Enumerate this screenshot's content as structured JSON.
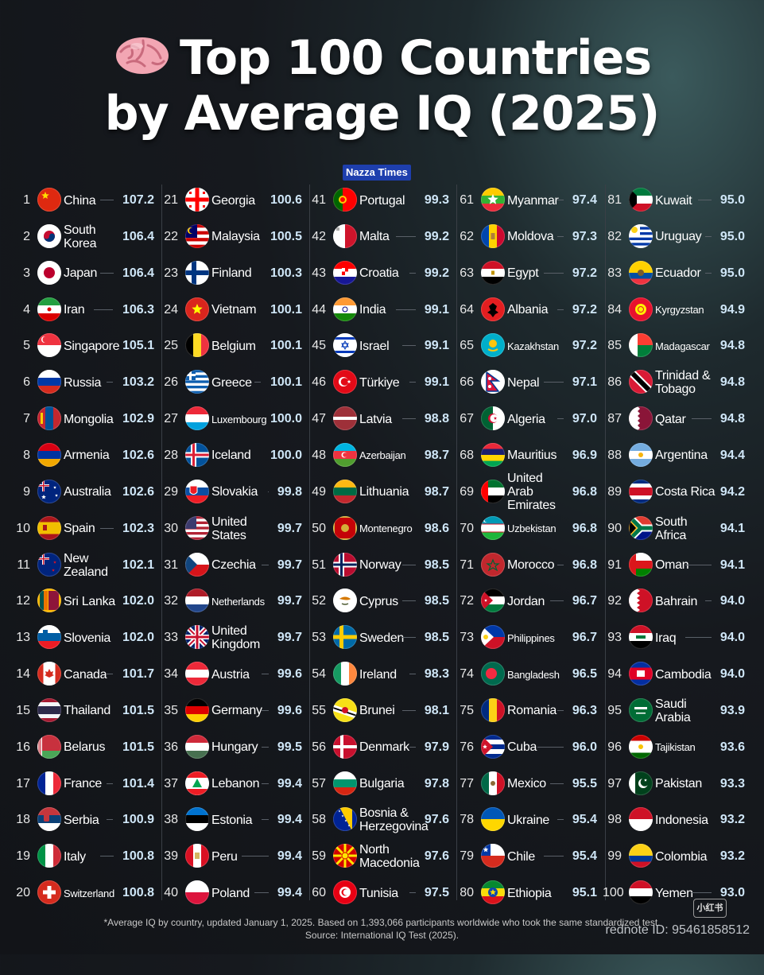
{
  "title": {
    "line1": "Top 100 Countries",
    "line2": "by Average IQ (2025)"
  },
  "brand_tag": "Nazza Times",
  "columns": [
    [
      {
        "rank": "1",
        "name": "China",
        "score": "107.2",
        "flag": "cn"
      },
      {
        "rank": "2",
        "name": "South Korea",
        "score": "106.4",
        "flag": "kr"
      },
      {
        "rank": "3",
        "name": "Japan",
        "score": "106.4",
        "flag": "jp"
      },
      {
        "rank": "4",
        "name": "Iran",
        "score": "106.3",
        "flag": "ir"
      },
      {
        "rank": "5",
        "name": "Singapore",
        "score": "105.1",
        "flag": "sg"
      },
      {
        "rank": "6",
        "name": "Russia",
        "score": "103.2",
        "flag": "ru"
      },
      {
        "rank": "7",
        "name": "Mongolia",
        "score": "102.9",
        "flag": "mn"
      },
      {
        "rank": "8",
        "name": "Armenia",
        "score": "102.6",
        "flag": "am"
      },
      {
        "rank": "9",
        "name": "Australia",
        "score": "102.6",
        "flag": "au"
      },
      {
        "rank": "10",
        "name": "Spain",
        "score": "102.3",
        "flag": "es"
      },
      {
        "rank": "11",
        "name": "New Zealand",
        "score": "102.1",
        "flag": "nz"
      },
      {
        "rank": "12",
        "name": "Sri Lanka",
        "score": "102.0",
        "flag": "lk"
      },
      {
        "rank": "13",
        "name": "Slovenia",
        "score": "102.0",
        "flag": "si"
      },
      {
        "rank": "14",
        "name": "Canada",
        "score": "101.7",
        "flag": "ca"
      },
      {
        "rank": "15",
        "name": "Thailand",
        "score": "101.5",
        "flag": "th"
      },
      {
        "rank": "16",
        "name": "Belarus",
        "score": "101.5",
        "flag": "by"
      },
      {
        "rank": "17",
        "name": "France",
        "score": "101.4",
        "flag": "fr"
      },
      {
        "rank": "18",
        "name": "Serbia",
        "score": "100.9",
        "flag": "rs"
      },
      {
        "rank": "19",
        "name": "Italy",
        "score": "100.8",
        "flag": "it"
      },
      {
        "rank": "20",
        "name": "Switzerland",
        "score": "100.8",
        "flag": "ch"
      }
    ],
    [
      {
        "rank": "21",
        "name": "Georgia",
        "score": "100.6",
        "flag": "ge"
      },
      {
        "rank": "22",
        "name": "Malaysia",
        "score": "100.5",
        "flag": "my"
      },
      {
        "rank": "23",
        "name": "Finland",
        "score": "100.3",
        "flag": "fi"
      },
      {
        "rank": "24",
        "name": "Vietnam",
        "score": "100.1",
        "flag": "vn"
      },
      {
        "rank": "25",
        "name": "Belgium",
        "score": "100.1",
        "flag": "be"
      },
      {
        "rank": "26",
        "name": "Greece",
        "score": "100.1",
        "flag": "gr"
      },
      {
        "rank": "27",
        "name": "Luxembourg",
        "score": "100.0",
        "flag": "lu"
      },
      {
        "rank": "28",
        "name": "Iceland",
        "score": "100.0",
        "flag": "is"
      },
      {
        "rank": "29",
        "name": "Slovakia",
        "score": "99.8",
        "flag": "sk"
      },
      {
        "rank": "30",
        "name": "United States",
        "score": "99.7",
        "flag": "us"
      },
      {
        "rank": "31",
        "name": "Czechia",
        "score": "99.7",
        "flag": "cz"
      },
      {
        "rank": "32",
        "name": "Netherlands",
        "score": "99.7",
        "flag": "nl"
      },
      {
        "rank": "33",
        "name": "United Kingdom",
        "score": "99.7",
        "flag": "gb"
      },
      {
        "rank": "34",
        "name": "Austria",
        "score": "99.6",
        "flag": "at"
      },
      {
        "rank": "35",
        "name": "Germany",
        "score": "99.6",
        "flag": "de"
      },
      {
        "rank": "36",
        "name": "Hungary",
        "score": "99.5",
        "flag": "hu"
      },
      {
        "rank": "37",
        "name": "Lebanon",
        "score": "99.4",
        "flag": "lb"
      },
      {
        "rank": "38",
        "name": "Estonia",
        "score": "99.4",
        "flag": "ee"
      },
      {
        "rank": "39",
        "name": "Peru",
        "score": "99.4",
        "flag": "pe"
      },
      {
        "rank": "40",
        "name": "Poland",
        "score": "99.4",
        "flag": "pl"
      }
    ],
    [
      {
        "rank": "41",
        "name": "Portugal",
        "score": "99.3",
        "flag": "pt"
      },
      {
        "rank": "42",
        "name": "Malta",
        "score": "99.2",
        "flag": "mt"
      },
      {
        "rank": "43",
        "name": "Croatia",
        "score": "99.2",
        "flag": "hr"
      },
      {
        "rank": "44",
        "name": "India",
        "score": "99.1",
        "flag": "in"
      },
      {
        "rank": "45",
        "name": "Israel",
        "score": "99.1",
        "flag": "il"
      },
      {
        "rank": "46",
        "name": "Türkiye",
        "score": "99.1",
        "flag": "tr"
      },
      {
        "rank": "47",
        "name": "Latvia",
        "score": "98.8",
        "flag": "lv"
      },
      {
        "rank": "48",
        "name": "Azerbaijan",
        "score": "98.7",
        "flag": "az"
      },
      {
        "rank": "49",
        "name": "Lithuania",
        "score": "98.7",
        "flag": "lt"
      },
      {
        "rank": "50",
        "name": "Montenegro",
        "score": "98.6",
        "flag": "me"
      },
      {
        "rank": "51",
        "name": "Norway",
        "score": "98.5",
        "flag": "no"
      },
      {
        "rank": "52",
        "name": "Cyprus",
        "score": "98.5",
        "flag": "cy"
      },
      {
        "rank": "53",
        "name": "Sweden",
        "score": "98.5",
        "flag": "se"
      },
      {
        "rank": "54",
        "name": "Ireland",
        "score": "98.3",
        "flag": "ie"
      },
      {
        "rank": "55",
        "name": "Brunei",
        "score": "98.1",
        "flag": "bn"
      },
      {
        "rank": "56",
        "name": "Denmark",
        "score": "97.9",
        "flag": "dk"
      },
      {
        "rank": "57",
        "name": "Bulgaria",
        "score": "97.8",
        "flag": "bg"
      },
      {
        "rank": "58",
        "name": "Bosnia & Herzegovina",
        "score": "97.6",
        "flag": "ba"
      },
      {
        "rank": "59",
        "name": "North Macedonia",
        "score": "97.6",
        "flag": "mk"
      },
      {
        "rank": "60",
        "name": "Tunisia",
        "score": "97.5",
        "flag": "tn"
      }
    ],
    [
      {
        "rank": "61",
        "name": "Myanmar",
        "score": "97.4",
        "flag": "mm"
      },
      {
        "rank": "62",
        "name": "Moldova",
        "score": "97.3",
        "flag": "md"
      },
      {
        "rank": "63",
        "name": "Egypt",
        "score": "97.2",
        "flag": "eg"
      },
      {
        "rank": "64",
        "name": "Albania",
        "score": "97.2",
        "flag": "al"
      },
      {
        "rank": "65",
        "name": "Kazakhstan",
        "score": "97.2",
        "flag": "kz"
      },
      {
        "rank": "66",
        "name": "Nepal",
        "score": "97.1",
        "flag": "np"
      },
      {
        "rank": "67",
        "name": "Algeria",
        "score": "97.0",
        "flag": "dz"
      },
      {
        "rank": "68",
        "name": "Mauritius",
        "score": "96.9",
        "flag": "mu"
      },
      {
        "rank": "69",
        "name": "United Arab Emirates",
        "score": "96.8",
        "flag": "ae"
      },
      {
        "rank": "70",
        "name": "Uzbekistan",
        "score": "96.8",
        "flag": "uz"
      },
      {
        "rank": "71",
        "name": "Morocco",
        "score": "96.8",
        "flag": "ma"
      },
      {
        "rank": "72",
        "name": "Jordan",
        "score": "96.7",
        "flag": "jo"
      },
      {
        "rank": "73",
        "name": "Philippines",
        "score": "96.7",
        "flag": "ph"
      },
      {
        "rank": "74",
        "name": "Bangladesh",
        "score": "96.5",
        "flag": "bd"
      },
      {
        "rank": "75",
        "name": "Romania",
        "score": "96.3",
        "flag": "ro"
      },
      {
        "rank": "76",
        "name": "Cuba",
        "score": "96.0",
        "flag": "cu"
      },
      {
        "rank": "77",
        "name": "Mexico",
        "score": "95.5",
        "flag": "mx"
      },
      {
        "rank": "78",
        "name": "Ukraine",
        "score": "95.4",
        "flag": "ua"
      },
      {
        "rank": "79",
        "name": "Chile",
        "score": "95.4",
        "flag": "cl"
      },
      {
        "rank": "80",
        "name": "Ethiopia",
        "score": "95.1",
        "flag": "et"
      }
    ],
    [
      {
        "rank": "81",
        "name": "Kuwait",
        "score": "95.0",
        "flag": "kw"
      },
      {
        "rank": "82",
        "name": "Uruguay",
        "score": "95.0",
        "flag": "uy"
      },
      {
        "rank": "83",
        "name": "Ecuador",
        "score": "95.0",
        "flag": "ec"
      },
      {
        "rank": "84",
        "name": "Kyrgyzstan",
        "score": "94.9",
        "flag": "kg"
      },
      {
        "rank": "85",
        "name": "Madagascar",
        "score": "94.8",
        "flag": "mg"
      },
      {
        "rank": "86",
        "name": "Trinidad & Tobago",
        "score": "94.8",
        "flag": "tt"
      },
      {
        "rank": "87",
        "name": "Qatar",
        "score": "94.8",
        "flag": "qa"
      },
      {
        "rank": "88",
        "name": "Argentina",
        "score": "94.4",
        "flag": "ar"
      },
      {
        "rank": "89",
        "name": "Costa Rica",
        "score": "94.2",
        "flag": "cr"
      },
      {
        "rank": "90",
        "name": "South Africa",
        "score": "94.1",
        "flag": "za"
      },
      {
        "rank": "91",
        "name": "Oman",
        "score": "94.1",
        "flag": "om"
      },
      {
        "rank": "92",
        "name": "Bahrain",
        "score": "94.0",
        "flag": "bh"
      },
      {
        "rank": "93",
        "name": "Iraq",
        "score": "94.0",
        "flag": "iq"
      },
      {
        "rank": "94",
        "name": "Cambodia",
        "score": "94.0",
        "flag": "kh"
      },
      {
        "rank": "95",
        "name": "Saudi Arabia",
        "score": "93.9",
        "flag": "sa"
      },
      {
        "rank": "96",
        "name": "Tajikistan",
        "score": "93.6",
        "flag": "tj"
      },
      {
        "rank": "97",
        "name": "Pakistan",
        "score": "93.3",
        "flag": "pk"
      },
      {
        "rank": "98",
        "name": "Indonesia",
        "score": "93.2",
        "flag": "id"
      },
      {
        "rank": "99",
        "name": "Colombia",
        "score": "93.2",
        "flag": "co"
      },
      {
        "rank": "100",
        "name": "Yemen",
        "score": "93.0",
        "flag": "ye"
      }
    ]
  ],
  "footer": {
    "line1": "*Average IQ by country, updated January 1, 2025. Based on 1,393,066 participants worldwide who took the same standardized test.",
    "line2": "Source: International IQ Test (2025)."
  },
  "watermark": "rednote ID: 95461858512",
  "logo_text": "小红书",
  "colors": {
    "score": "#cfe6f7",
    "brand_tag_bg": "#1e3fae",
    "background": "#16191e"
  },
  "icons": {
    "title_icon": "brain-icon"
  }
}
